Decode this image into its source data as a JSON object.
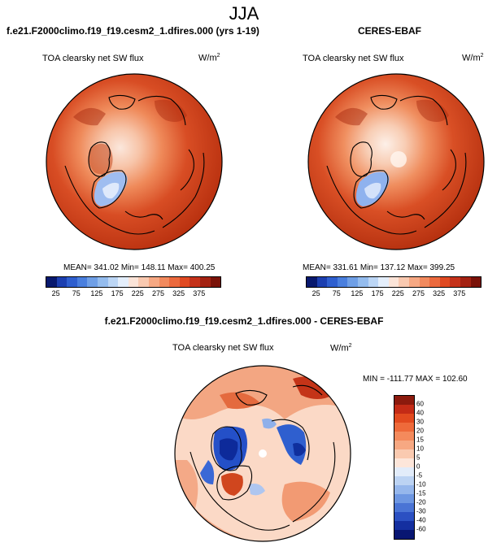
{
  "main_title": "JJA",
  "left": {
    "title": "f.e21.F2000climo.f19_f19.cesm2_1.dfires.000 (yrs 1-19)",
    "variable": "TOA clearsky net SW flux",
    "unit_base": "W/m",
    "unit_exp": "2",
    "stats": "MEAN= 341.02  Min= 148.11  Max= 400.25"
  },
  "right": {
    "title": "CERES-EBAF",
    "variable": "TOA clearsky net SW flux",
    "unit_base": "W/m",
    "unit_exp": "2",
    "stats": "MEAN= 331.61  Min= 137.12  Max= 399.25"
  },
  "diff": {
    "title": "f.e21.F2000climo.f19_f19.cesm2_1.dfires.000 - CERES-EBAF",
    "variable": "TOA clearsky net SW flux",
    "unit_base": "W/m",
    "unit_exp": "2",
    "stats": "MIN = -111.77 MAX = 102.60"
  },
  "colorbar_abs": {
    "ticks": [
      "25",
      "75",
      "125",
      "175",
      "225",
      "275",
      "325",
      "375"
    ],
    "colors": [
      "#08196e",
      "#1c3fb0",
      "#2f5fcf",
      "#4a7fde",
      "#6f9fe6",
      "#94bcee",
      "#bcd6f5",
      "#e4eefb",
      "#fbe4d8",
      "#f9c9b0",
      "#f6a883",
      "#f28a5e",
      "#ec6a3e",
      "#e04a22",
      "#c5321a",
      "#a42212",
      "#7a1208"
    ]
  },
  "colorbar_diff": {
    "ticks": [
      "60",
      "40",
      "30",
      "20",
      "15",
      "10",
      "5",
      "0",
      "-5",
      "-10",
      "-15",
      "-20",
      "-30",
      "-40",
      "-60"
    ],
    "colors": [
      "#8c1a0d",
      "#c42b16",
      "#e24a1f",
      "#ee6a3a",
      "#f48a5c",
      "#f7a882",
      "#facab0",
      "#fde6da",
      "#e2ecfa",
      "#bcd3f3",
      "#96b7ec",
      "#6e97e2",
      "#4a74d5",
      "#2b50c2",
      "#142fa0",
      "#081672"
    ]
  }
}
